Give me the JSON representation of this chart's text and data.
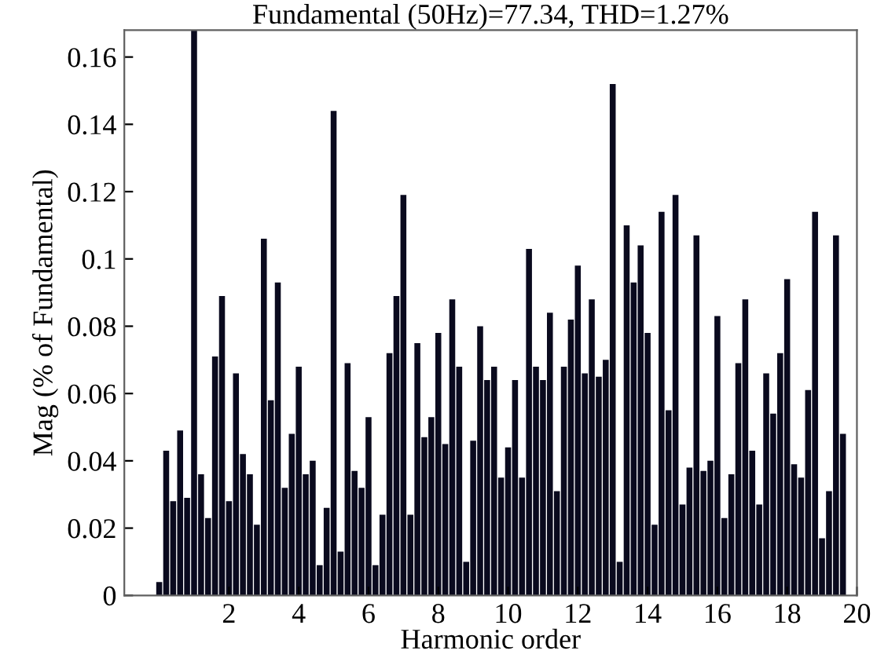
{
  "chart_data": {
    "type": "bar",
    "title": "Fundamental (50Hz)=77.34, THD=1.27%",
    "xlabel": "Harmonic order",
    "ylabel": "Mag (% of Fundamental)",
    "x": [
      0,
      0.2,
      0.4,
      0.6,
      0.8,
      1,
      1.2,
      1.4,
      1.6,
      1.8,
      2,
      2.2,
      2.4,
      2.6,
      2.8,
      3,
      3.2,
      3.4,
      3.6,
      3.8,
      4,
      4.2,
      4.4,
      4.6,
      4.8,
      5,
      5.2,
      5.4,
      5.6,
      5.8,
      6,
      6.2,
      6.4,
      6.6,
      6.8,
      7,
      7.2,
      7.4,
      7.6,
      7.8,
      8,
      8.2,
      8.4,
      8.6,
      8.8,
      9,
      9.2,
      9.4,
      9.6,
      9.8,
      10,
      10.2,
      10.4,
      10.6,
      10.8,
      11,
      11.2,
      11.4,
      11.6,
      11.8,
      12,
      12.2,
      12.4,
      12.6,
      12.8,
      13,
      13.2,
      13.4,
      13.6,
      13.8,
      14,
      14.2,
      14.4,
      14.6,
      14.8,
      15,
      15.2,
      15.4,
      15.6,
      15.8,
      16,
      16.2,
      16.4,
      16.6,
      16.8,
      17,
      17.2,
      17.4,
      17.6,
      17.8,
      18,
      18.2,
      18.4,
      18.6,
      18.8,
      19,
      19.2,
      19.4,
      19.6
    ],
    "values": [
      0.004,
      0.043,
      0.028,
      0.049,
      0.029,
      0.168,
      0.036,
      0.023,
      0.071,
      0.089,
      0.028,
      0.066,
      0.042,
      0.036,
      0.021,
      0.106,
      0.058,
      0.093,
      0.032,
      0.048,
      0.068,
      0.036,
      0.04,
      0.009,
      0.026,
      0.144,
      0.013,
      0.069,
      0.037,
      0.032,
      0.053,
      0.009,
      0.024,
      0.072,
      0.089,
      0.119,
      0.024,
      0.075,
      0.047,
      0.053,
      0.078,
      0.045,
      0.088,
      0.068,
      0.01,
      0.046,
      0.08,
      0.064,
      0.068,
      0.035,
      0.044,
      0.064,
      0.035,
      0.103,
      0.068,
      0.064,
      0.084,
      0.031,
      0.068,
      0.082,
      0.098,
      0.066,
      0.088,
      0.065,
      0.07,
      0.152,
      0.01,
      0.11,
      0.093,
      0.104,
      0.078,
      0.021,
      0.114,
      0.055,
      0.119,
      0.027,
      0.038,
      0.107,
      0.037,
      0.04,
      0.083,
      0.023,
      0.036,
      0.069,
      0.088,
      0.043,
      0.027,
      0.066,
      0.054,
      0.072,
      0.094,
      0.039,
      0.035,
      0.061,
      0.114,
      0.017,
      0.031,
      0.107,
      0.048
    ],
    "color": "#0a0a1e",
    "xlim": [
      -1,
      20
    ],
    "xticks": [
      2,
      4,
      6,
      8,
      10,
      12,
      14,
      16,
      18,
      20
    ],
    "ylim": [
      0,
      0.168
    ],
    "yticks": [
      0,
      0.02,
      0.04,
      0.06,
      0.08,
      0.1,
      0.12,
      0.14,
      0.16
    ],
    "grid": false
  }
}
